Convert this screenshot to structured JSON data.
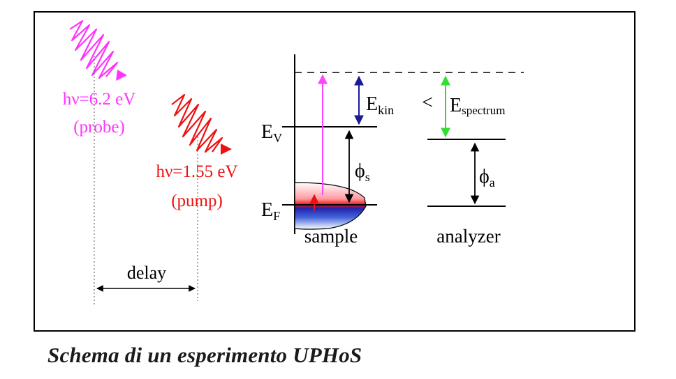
{
  "probe": {
    "energy": "hν=6.2 eV",
    "name": "(probe)",
    "color": "#ff33ff"
  },
  "pump": {
    "energy": "hν=1.55 eV",
    "name": "(pump)",
    "color": "#ee1111"
  },
  "delay": "delay",
  "sample": {
    "label": "sample",
    "ev": {
      "main": "E",
      "sub": "V"
    },
    "ef": {
      "main": "E",
      "sub": "F"
    },
    "work_function": {
      "main": "ϕ",
      "sub": "s"
    },
    "ekin": {
      "main": "E",
      "sub": "kin"
    }
  },
  "comparison_symbol": "<",
  "analyzer": {
    "label": "analyzer",
    "espectrum": {
      "main": "E",
      "sub": "spectrum"
    },
    "work_function": {
      "main": "ϕ",
      "sub": "a"
    }
  },
  "colors": {
    "ekin_arrow": "#1a1a99",
    "espectrum_arrow": "#33dd33",
    "excitation_arrow": "#ff44ff"
  },
  "caption": "Schema di un esperimento UPHoS"
}
